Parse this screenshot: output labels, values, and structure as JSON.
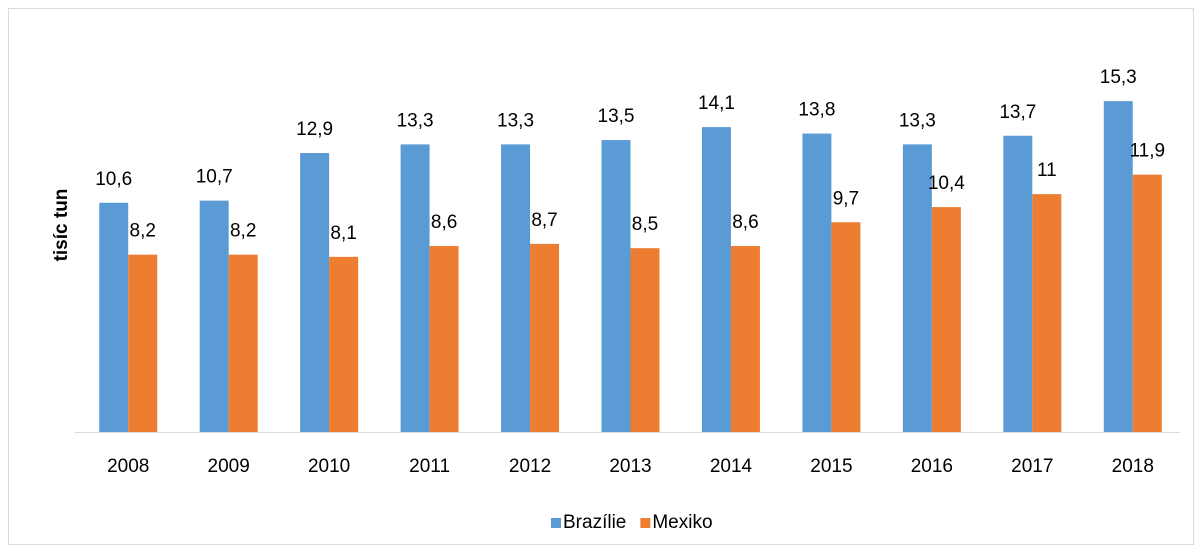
{
  "chart_data": {
    "type": "bar",
    "y_label": "tisíc tun",
    "categories": [
      "2008",
      "2009",
      "2010",
      "2011",
      "2012",
      "2013",
      "2014",
      "2015",
      "2016",
      "2017",
      "2018"
    ],
    "series": [
      {
        "name": "Brazílie",
        "color": "#5b9bd5",
        "values": [
          10.6,
          10.7,
          12.9,
          13.3,
          13.3,
          13.5,
          14.1,
          13.8,
          13.3,
          13.7,
          15.3
        ],
        "value_labels": [
          "10,6",
          "10,7",
          "12,9",
          "13,3",
          "13,3",
          "13,5",
          "14,1",
          "13,8",
          "13,3",
          "13,7",
          "15,3"
        ]
      },
      {
        "name": "Mexiko",
        "color": "#ed7d31",
        "values": [
          8.2,
          8.2,
          8.1,
          8.6,
          8.7,
          8.5,
          8.6,
          9.7,
          10.4,
          11,
          11.9
        ],
        "value_labels": [
          "8,2",
          "8,2",
          "8,1",
          "8,6",
          "8,7",
          "8,5",
          "8,6",
          "9,7",
          "10,4",
          "11",
          "11,9"
        ]
      }
    ],
    "ylim": [
      0,
      16
    ],
    "legend": "bottom"
  }
}
